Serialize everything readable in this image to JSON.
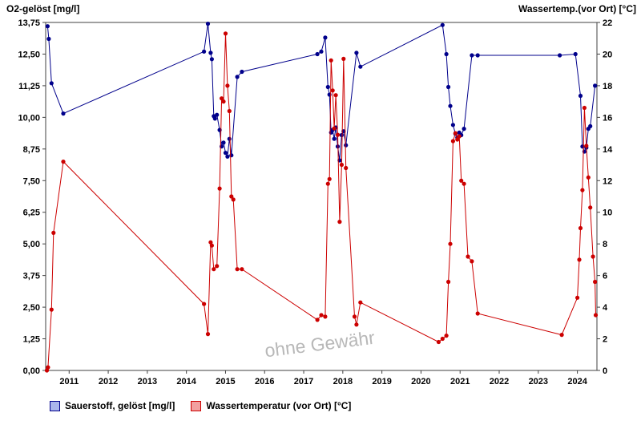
{
  "watermark": "ohne Gewähr",
  "legend": [
    {
      "label": "Sauerstoff, gelöst [mg/l]",
      "fill": "#aab6ec",
      "border": "#00008b"
    },
    {
      "label": "Wassertemperatur (vor Ort) [°C]",
      "fill": "#f2a0a0",
      "border": "#cc0000"
    }
  ],
  "chart_data": {
    "type": "line",
    "title": "",
    "x_range": [
      2010.4,
      2024.5
    ],
    "x_ticks": [
      2011,
      2012,
      2013,
      2014,
      2015,
      2016,
      2017,
      2018,
      2019,
      2020,
      2021,
      2022,
      2023,
      2024
    ],
    "left_axis": {
      "title": "O2-gelöst [mg/l]",
      "range": [
        0,
        13.75
      ],
      "values": [
        0,
        1.25,
        2.5,
        3.75,
        5,
        6.25,
        7.5,
        8.75,
        10,
        11.25,
        12.5,
        13.75
      ],
      "ticks": [
        "0,00",
        "1,25",
        "2,50",
        "3,75",
        "5,00",
        "6,25",
        "7,50",
        "8,75",
        "10,00",
        "11,25",
        "12,50",
        "13,75"
      ]
    },
    "right_axis": {
      "title": "Wassertemp.(vor Ort) [°C]",
      "range": [
        0,
        22
      ],
      "values": [
        0,
        2,
        4,
        6,
        8,
        10,
        12,
        14,
        16,
        18,
        20,
        22
      ],
      "ticks": [
        "0",
        "2",
        "4",
        "6",
        "8",
        "10",
        "12",
        "14",
        "16",
        "18",
        "20",
        "22"
      ]
    },
    "series": [
      {
        "name": "Sauerstoff, gelöst [mg/l]",
        "axis": "left",
        "color": "#00008b",
        "points": [
          [
            2010.45,
            13.6
          ],
          [
            2010.48,
            13.1
          ],
          [
            2010.55,
            11.35
          ],
          [
            2010.85,
            10.15
          ],
          [
            2014.45,
            12.6
          ],
          [
            2014.55,
            13.7
          ],
          [
            2014.62,
            12.55
          ],
          [
            2014.65,
            12.3
          ],
          [
            2014.7,
            10.05
          ],
          [
            2014.73,
            9.95
          ],
          [
            2014.78,
            10.1
          ],
          [
            2014.85,
            9.5
          ],
          [
            2014.9,
            8.85
          ],
          [
            2014.95,
            9.0
          ],
          [
            2015.0,
            8.6
          ],
          [
            2015.05,
            8.45
          ],
          [
            2015.1,
            9.15
          ],
          [
            2015.15,
            8.5
          ],
          [
            2015.3,
            11.6
          ],
          [
            2015.42,
            11.8
          ],
          [
            2017.35,
            12.5
          ],
          [
            2017.45,
            12.6
          ],
          [
            2017.55,
            13.15
          ],
          [
            2017.62,
            11.2
          ],
          [
            2017.66,
            10.9
          ],
          [
            2017.7,
            9.4
          ],
          [
            2017.74,
            9.5
          ],
          [
            2017.78,
            9.15
          ],
          [
            2017.82,
            9.6
          ],
          [
            2017.87,
            8.85
          ],
          [
            2017.92,
            8.3
          ],
          [
            2017.97,
            9.3
          ],
          [
            2018.02,
            9.45
          ],
          [
            2018.08,
            8.9
          ],
          [
            2018.35,
            12.55
          ],
          [
            2018.45,
            12.0
          ],
          [
            2020.55,
            13.65
          ],
          [
            2020.65,
            12.5
          ],
          [
            2020.7,
            11.2
          ],
          [
            2020.75,
            10.45
          ],
          [
            2020.82,
            9.7
          ],
          [
            2020.88,
            9.35
          ],
          [
            2020.93,
            9.2
          ],
          [
            2020.98,
            9.4
          ],
          [
            2021.03,
            9.3
          ],
          [
            2021.1,
            9.55
          ],
          [
            2021.3,
            12.45
          ],
          [
            2021.45,
            12.45
          ],
          [
            2023.55,
            12.45
          ],
          [
            2023.95,
            12.5
          ],
          [
            2024.08,
            10.85
          ],
          [
            2024.13,
            8.85
          ],
          [
            2024.18,
            8.65
          ],
          [
            2024.23,
            8.8
          ],
          [
            2024.28,
            9.55
          ],
          [
            2024.33,
            9.65
          ],
          [
            2024.45,
            11.25
          ]
        ]
      },
      {
        "name": "Wassertemperatur (vor Ort) [°C]",
        "axis": "right",
        "color": "#cc0000",
        "points": [
          [
            2010.43,
            0.0
          ],
          [
            2010.46,
            0.2
          ],
          [
            2010.55,
            3.85
          ],
          [
            2010.6,
            8.7
          ],
          [
            2010.85,
            13.2
          ],
          [
            2014.45,
            4.2
          ],
          [
            2014.55,
            2.3
          ],
          [
            2014.62,
            8.1
          ],
          [
            2014.65,
            7.9
          ],
          [
            2014.7,
            6.4
          ],
          [
            2014.78,
            6.6
          ],
          [
            2014.85,
            11.5
          ],
          [
            2014.9,
            17.2
          ],
          [
            2014.95,
            17.0
          ],
          [
            2015.0,
            21.3
          ],
          [
            2015.05,
            18.0
          ],
          [
            2015.1,
            16.4
          ],
          [
            2015.15,
            11.0
          ],
          [
            2015.2,
            10.8
          ],
          [
            2015.3,
            6.4
          ],
          [
            2015.42,
            6.4
          ],
          [
            2017.35,
            3.2
          ],
          [
            2017.45,
            3.5
          ],
          [
            2017.55,
            3.4
          ],
          [
            2017.62,
            11.8
          ],
          [
            2017.66,
            12.1
          ],
          [
            2017.7,
            19.6
          ],
          [
            2017.74,
            17.7
          ],
          [
            2017.78,
            15.3
          ],
          [
            2017.82,
            17.4
          ],
          [
            2017.87,
            14.9
          ],
          [
            2017.92,
            9.4
          ],
          [
            2017.97,
            13.0
          ],
          [
            2018.02,
            19.7
          ],
          [
            2018.08,
            12.8
          ],
          [
            2018.3,
            3.4
          ],
          [
            2018.35,
            2.9
          ],
          [
            2018.45,
            4.3
          ],
          [
            2020.45,
            1.8
          ],
          [
            2020.55,
            2.0
          ],
          [
            2020.65,
            2.2
          ],
          [
            2020.7,
            5.6
          ],
          [
            2020.75,
            8.0
          ],
          [
            2020.82,
            14.5
          ],
          [
            2020.88,
            15.0
          ],
          [
            2020.93,
            14.6
          ],
          [
            2020.98,
            14.8
          ],
          [
            2021.03,
            12.0
          ],
          [
            2021.1,
            11.8
          ],
          [
            2021.2,
            7.2
          ],
          [
            2021.3,
            6.9
          ],
          [
            2021.45,
            3.6
          ],
          [
            2023.6,
            2.25
          ],
          [
            2024.0,
            4.6
          ],
          [
            2024.05,
            7.0
          ],
          [
            2024.08,
            9.0
          ],
          [
            2024.13,
            11.4
          ],
          [
            2024.18,
            16.6
          ],
          [
            2024.23,
            14.2
          ],
          [
            2024.28,
            12.2
          ],
          [
            2024.33,
            10.3
          ],
          [
            2024.4,
            7.2
          ],
          [
            2024.45,
            5.6
          ],
          [
            2024.47,
            3.5
          ]
        ]
      }
    ],
    "grid": false,
    "legend_position": "bottom-left"
  }
}
